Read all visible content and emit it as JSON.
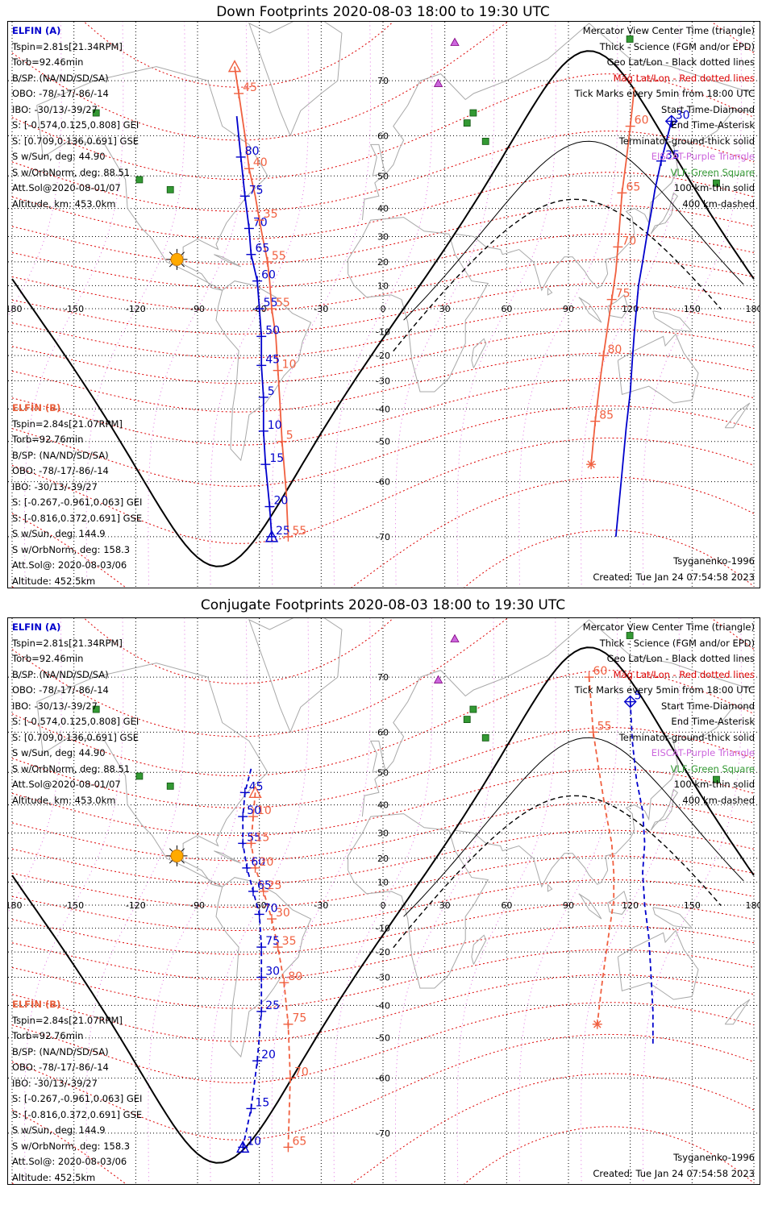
{
  "panels": [
    {
      "title": "Down Footprints 2020-08-03 18:00 to 19:30 UTC",
      "elfin_a": [
        "ELFIN (A)",
        "Tspin=2.81s[21.34RPM]",
        "Torb=92.46min",
        "B/SP: (NA/ND/SD/SA)",
        "OBO: -78/-17/-86/-14",
        "IBO: -30/13/-39/27",
        "S: [-0.574,0.125,0.808] GEI",
        "S: [0.709,0.136,0.691] GSE",
        "S w/Sun, deg: 44.90",
        "S w/OrbNorm, deg: 88.51",
        "Att.Sol@2020-08-01/07",
        "Altitude, km: 453.0km"
      ],
      "elfin_b": [
        "ELFIN (B)",
        "Tspin=2.84s[21.07RPM]",
        "Torb=92.76min",
        "B/SP: (NA/ND/SD/SA)",
        "OBO: -78/-17/-86/-14",
        "IBO: -30/13/-39/27",
        "S: [-0.267,-0.961,0.063] GEI",
        "S: [-0.816,0.372,0.691] GSE",
        "S w/Sun, deg: 144.9",
        "S w/OrbNorm, deg: 158.3",
        "Att.Sol@: 2020-08-03/06",
        "Altitude: 452.5km"
      ],
      "legend": [
        "Mercator View Center Time (triangle)",
        "Thick - Science (FGM and/or EPD)",
        "Geo Lat/Lon - Black dotted lines",
        "Mag Lat/Lon - Red dotted lines",
        "Tick Marks every 5min from 18:00 UTC",
        "Start Time-Diamond",
        "End Time-Asterisk",
        "Terminator-ground-thick solid",
        "EISCAT-Purple Triangle",
        "VLF-Green Square",
        "100 km-thin solid",
        "400 km-dashed"
      ],
      "model": "Tsyganenko-1996",
      "created": "Created: Tue Jan 24 07:54:58 2023",
      "a_ticks": [
        {
          "label": "80"
        },
        {
          "label": "75"
        },
        {
          "label": "70"
        },
        {
          "label": "65"
        },
        {
          "label": "60"
        },
        {
          "label": "55"
        },
        {
          "label": "50"
        },
        {
          "label": "45"
        },
        {
          "label": "5"
        },
        {
          "label": "10"
        },
        {
          "label": "15"
        },
        {
          "label": "20"
        },
        {
          "label": "25"
        },
        {
          "label": "30"
        },
        {
          "label": "35"
        }
      ],
      "b_ticks": [
        {
          "label": "45"
        },
        {
          "label": "40"
        },
        {
          "label": "35"
        },
        {
          "label": "55"
        },
        {
          "label": "55"
        },
        {
          "label": "10"
        },
        {
          "label": "5"
        },
        {
          "label": "55"
        },
        {
          "label": "60"
        },
        {
          "label": "65"
        },
        {
          "label": "70"
        },
        {
          "label": "75"
        },
        {
          "label": "80"
        },
        {
          "label": "85"
        }
      ]
    },
    {
      "title": "Conjugate Footprints 2020-08-03 18:00 to 19:30 UTC",
      "elfin_a": [
        "ELFIN (A)",
        "Tspin=2.81s[21.34RPM]",
        "Torb=92.46min",
        "B/SP: (NA/ND/SD/SA)",
        "OBO: -78/-17/-86/-14",
        "IBO: -30/13/-39/27",
        "S: [-0.574,0.125,0.808] GEI",
        "S: [0.709,0.136,0.691] GSE",
        "S w/Sun, deg: 44.90",
        "S w/OrbNorm, deg: 88.51",
        "Att.Sol@2020-08-01/07",
        "Altitude, km: 453.0km"
      ],
      "elfin_b": [
        "ELFIN (B)",
        "Tspin=2.84s[21.07RPM]",
        "Torb=92.76min",
        "B/SP: (NA/ND/SD/SA)",
        "OBO: -78/-17/-86/-14",
        "IBO: -30/13/-39/27",
        "S: [-0.267,-0.961,0.063] GEI",
        "S: [-0.816,0.372,0.691] GSE",
        "S w/Sun, deg: 144.9",
        "S w/OrbNorm, deg: 158.3",
        "Att.Sol@: 2020-08-03/06",
        "Altitude: 452.5km"
      ],
      "legend": [
        "Mercator View Center Time (triangle)",
        "Thick - Science (FGM and/or EPD)",
        "Geo Lat/Lon - Black dotted lines",
        "Mag Lat/Lon - Red dotted lines",
        "Tick Marks every 5min from 18:00 UTC",
        "Start Time-Diamond",
        "End Time-Asterisk",
        "Terminator-ground-thick solid",
        "EISCAT-Purple Triangle",
        "VLF-Green Square",
        "100 km-thin solid",
        "400 km-dashed"
      ],
      "model": "Tsyganenko-1996",
      "created": "Created: Tue Jan 24 07:54:58 2023",
      "a_ticks": [
        {
          "label": "45"
        },
        {
          "label": "50"
        },
        {
          "label": "55"
        },
        {
          "label": "60"
        },
        {
          "label": "65"
        },
        {
          "label": "70"
        },
        {
          "label": "75"
        },
        {
          "label": "30"
        },
        {
          "label": "25"
        },
        {
          "label": "20"
        },
        {
          "label": "15"
        },
        {
          "label": "10"
        },
        {
          "label": "5"
        }
      ],
      "b_ticks": [
        {
          "label": "10"
        },
        {
          "label": "15"
        },
        {
          "label": "20"
        },
        {
          "label": "25"
        },
        {
          "label": "30"
        },
        {
          "label": "35"
        },
        {
          "label": "80"
        },
        {
          "label": "75"
        },
        {
          "label": "70"
        },
        {
          "label": "65"
        },
        {
          "label": "60"
        },
        {
          "label": "55"
        }
      ]
    }
  ],
  "colors": {
    "elfin_a": "#0000cc",
    "elfin_b": "#f06040",
    "mag_grid": "#dd0000",
    "geo_grid": "#000000",
    "mag_lon": "#e070e0",
    "eiscat": "#cc66dd",
    "vlf": "#339933",
    "sun": "#ffaa00",
    "coast": "#a8a8a8"
  },
  "chart_data": [
    {
      "type": "scatter",
      "title": "Down Footprints 2020-08-03 18:00 to 19:30 UTC",
      "projection": "mercator",
      "x_ticks": [
        "-180",
        "-150",
        "-120",
        "-90",
        "-60",
        "-30",
        "0",
        "30",
        "60",
        "90",
        "120",
        "150",
        "180"
      ],
      "y_ticks": [
        "70",
        "60",
        "50",
        "40",
        "30",
        "20",
        "10",
        "0",
        "-10",
        "-20",
        "-30",
        "-40",
        "-50",
        "-60",
        "-70"
      ],
      "series": [
        {
          "name": "ELFIN (A)",
          "pass1": [
            [
              -71,
              64
            ],
            [
              -69,
              55
            ],
            [
              -67,
              44
            ],
            [
              -65,
              33
            ],
            [
              -64,
              23
            ],
            [
              -61,
              12
            ],
            [
              -60,
              0
            ],
            [
              -59,
              -12
            ],
            [
              -59,
              -24
            ],
            [
              -58,
              -36
            ],
            [
              -58,
              -47
            ],
            [
              -57,
              -56
            ],
            [
              -55,
              -65
            ],
            [
              -54,
              -70
            ]
          ],
          "pass2": [
            [
              140,
              63
            ],
            [
              135,
              54
            ],
            [
              132,
              46
            ],
            [
              130,
              38
            ],
            [
              128,
              30
            ],
            [
              126,
              20
            ],
            [
              124,
              10
            ],
            [
              123,
              0
            ],
            [
              122,
              -10
            ],
            [
              121,
              -22
            ],
            [
              120,
              -34
            ],
            [
              118,
              -46
            ],
            [
              116,
              -58
            ],
            [
              113,
              -70
            ]
          ]
        },
        {
          "name": "ELFIN (B)",
          "pass1": [
            [
              -72,
              72
            ],
            [
              -70,
              68
            ],
            [
              -67,
              60
            ],
            [
              -65,
              52
            ],
            [
              -62,
              44
            ],
            [
              -60,
              36
            ],
            [
              -58,
              28
            ],
            [
              -56,
              20
            ],
            [
              -55,
              12
            ],
            [
              -54,
              0
            ],
            [
              -52,
              -12
            ],
            [
              -51,
              -26
            ],
            [
              -50,
              -38
            ],
            [
              -49,
              -50
            ],
            [
              -47,
              -62
            ],
            [
              -46,
              -70
            ]
          ],
          "pass2": [
            [
              122,
              69
            ],
            [
              120,
              62
            ],
            [
              118,
              54
            ],
            [
              116,
              45
            ],
            [
              115,
              36
            ],
            [
              114,
              26
            ],
            [
              113,
              16
            ],
            [
              111,
              4
            ],
            [
              109,
              -8
            ],
            [
              107,
              -20
            ],
            [
              105,
              -32
            ],
            [
              103,
              -44
            ],
            [
              101,
              -56
            ]
          ]
        }
      ]
    },
    {
      "type": "scatter",
      "title": "Conjugate Footprints 2020-08-03 18:00 to 19:30 UTC",
      "projection": "mercator",
      "x_ticks": [
        "-180",
        "-150",
        "-120",
        "-90",
        "-60",
        "-30",
        "0",
        "30",
        "60",
        "90",
        "120",
        "150",
        "180"
      ],
      "y_ticks": [
        "70",
        "60",
        "50",
        "40",
        "30",
        "20",
        "10",
        "0",
        "-10",
        "-20",
        "-30",
        "-40",
        "-50",
        "-60",
        "-70"
      ],
      "series": [
        {
          "name": "ELFIN (A)",
          "pass1": [
            [
              -64,
              51
            ],
            [
              -67,
              44
            ],
            [
              -68,
              36
            ],
            [
              -68,
              26
            ],
            [
              -66,
              16
            ],
            [
              -63,
              6
            ],
            [
              -60,
              -4
            ],
            [
              -59,
              -18
            ],
            [
              -59,
              -30
            ],
            [
              -59,
              -42
            ],
            [
              -61,
              -56
            ],
            [
              -64,
              -66
            ],
            [
              -68,
              -72
            ]
          ],
          "pass2": [
            [
              120,
              66
            ],
            [
              121,
              58
            ],
            [
              123,
              48
            ],
            [
              126,
              38
            ],
            [
              127,
              26
            ],
            [
              126,
              14
            ],
            [
              127,
              0
            ],
            [
              129,
              -14
            ],
            [
              130,
              -28
            ],
            [
              131,
              -42
            ],
            [
              131,
              -52
            ]
          ]
        },
        {
          "name": "ELFIN (B)",
          "pass1": [
            [
              -62,
              44
            ],
            [
              -63,
              36
            ],
            [
              -64,
              26
            ],
            [
              -62,
              16
            ],
            [
              -58,
              6
            ],
            [
              -54,
              -6
            ],
            [
              -51,
              -18
            ],
            [
              -48,
              -32
            ],
            [
              -46,
              -46
            ],
            [
              -45,
              -60
            ],
            [
              -46,
              -72
            ]
          ],
          "pass2": [
            [
              100,
              70
            ],
            [
              102,
              60
            ],
            [
              105,
              50
            ],
            [
              108,
              38
            ],
            [
              111,
              26
            ],
            [
              112,
              14
            ],
            [
              112,
              2
            ],
            [
              110,
              -10
            ],
            [
              108,
              -22
            ],
            [
              106,
              -34
            ],
            [
              104,
              -46
            ]
          ]
        }
      ]
    }
  ]
}
